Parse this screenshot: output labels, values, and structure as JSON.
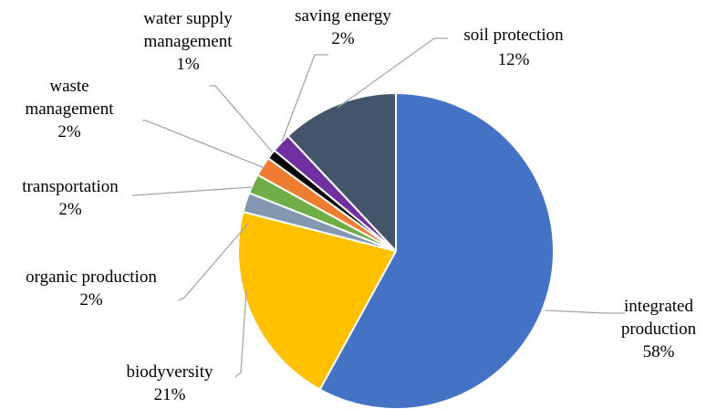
{
  "chart_data": {
    "type": "pie",
    "title": "",
    "slices": [
      {
        "label": [
          "integrated",
          "production"
        ],
        "value_label": "58%",
        "value": 58,
        "color": "#4472C4"
      },
      {
        "label": [
          "biodyversity"
        ],
        "value_label": "21%",
        "value": 21,
        "color": "#FFC000"
      },
      {
        "label": [
          "organic production"
        ],
        "value_label": "2%",
        "value": 2,
        "color": "#8497B0"
      },
      {
        "label": [
          "transportation"
        ],
        "value_label": "2%",
        "value": 2,
        "color": "#70AD47"
      },
      {
        "label": [
          "waste",
          "management"
        ],
        "value_label": "2%",
        "value": 2,
        "color": "#ED7D31"
      },
      {
        "label": [
          "water supply",
          "management"
        ],
        "value_label": "1%",
        "value": 1,
        "color": "#000000"
      },
      {
        "label": [
          "saving energy"
        ],
        "value_label": "2%",
        "value": 2,
        "color": "#7030A0"
      },
      {
        "label": [
          "soil protection"
        ],
        "value_label": "12%",
        "value": 12,
        "color": "#44546A"
      }
    ],
    "legend": "none",
    "data_labels": "outside with leader lines"
  }
}
